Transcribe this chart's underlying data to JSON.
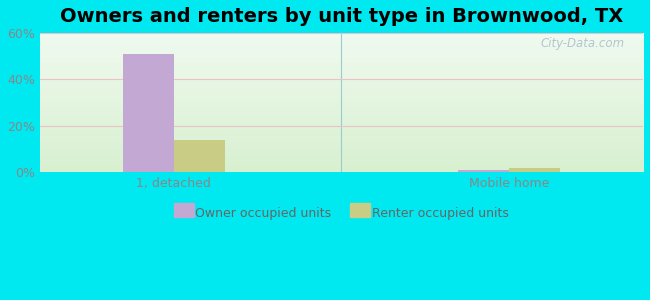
{
  "title": "Owners and renters by unit type in Brownwood, TX",
  "categories": [
    "1, detached",
    "Mobile home"
  ],
  "owner_values": [
    51.0,
    1.0
  ],
  "renter_values": [
    14.0,
    2.0
  ],
  "owner_color": "#c4a8d4",
  "renter_color": "#c8cc84",
  "ylim": [
    0,
    60
  ],
  "yticks": [
    0,
    20,
    40,
    60
  ],
  "yticklabels": [
    "0%",
    "20%",
    "40%",
    "60%"
  ],
  "bar_width": 0.38,
  "background_outer": "#00e8f0",
  "legend_labels": [
    "Owner occupied units",
    "Renter occupied units"
  ],
  "watermark": "City-Data.com",
  "title_fontsize": 14,
  "axis_fontsize": 9,
  "group_positions": [
    1.0,
    3.5
  ],
  "xlim": [
    0.0,
    4.5
  ]
}
